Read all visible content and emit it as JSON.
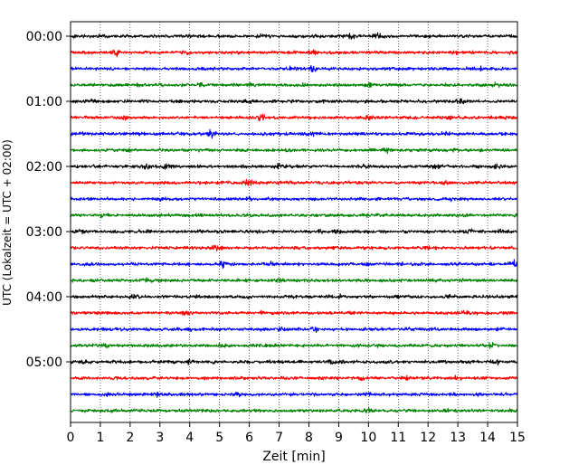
{
  "chart_data": {
    "type": "line",
    "title": "",
    "xlabel": "Zeit  [min]",
    "ylabel": "UTC (Lokalzeit = UTC + 02:00)",
    "xlim": [
      0,
      15
    ],
    "xticks": [
      "0",
      "1",
      "2",
      "3",
      "4",
      "5",
      "6",
      "7",
      "8",
      "9",
      "10",
      "11",
      "12",
      "13",
      "14",
      "15"
    ],
    "yticks": [
      {
        "label": "00:00",
        "row": 0
      },
      {
        "label": "01:00",
        "row": 4
      },
      {
        "label": "02:00",
        "row": 8
      },
      {
        "label": "03:00",
        "row": 12
      },
      {
        "label": "04:00",
        "row": 16
      },
      {
        "label": "05:00",
        "row": 20
      }
    ],
    "grid": "vertical dotted",
    "trace_minutes": 15,
    "trace_colors": [
      "#000000",
      "#ff0000",
      "#0000ff",
      "#008000"
    ],
    "traces": [
      {
        "start": "00:00",
        "color_index": 0,
        "events": [
          [
            9.4,
            2.2
          ],
          [
            10.3,
            3.4
          ],
          [
            0.1,
            1.5
          ],
          [
            8.3,
            1.6
          ],
          [
            6.4,
            1.4
          ]
        ]
      },
      {
        "start": "00:15",
        "color_index": 1,
        "events": [
          [
            1.5,
            2.0
          ],
          [
            3.9,
            2.0
          ],
          [
            8.2,
            3.2
          ],
          [
            1.6,
            1.6
          ],
          [
            12.9,
            1.6
          ],
          [
            14.8,
            1.5
          ]
        ]
      },
      {
        "start": "00:30",
        "color_index": 2,
        "events": [
          [
            7.3,
            1.8
          ],
          [
            8.1,
            2.8
          ],
          [
            4.4,
            1.5
          ],
          [
            10.8,
            1.5
          ],
          [
            13.8,
            1.6
          ]
        ]
      },
      {
        "start": "00:45",
        "color_index": 3,
        "events": [
          [
            4.4,
            2.0
          ],
          [
            10.0,
            2.0
          ],
          [
            14.3,
            1.8
          ],
          [
            2.3,
            1.5
          ],
          [
            7.8,
            1.5
          ],
          [
            6.0,
            1.6
          ]
        ]
      },
      {
        "start": "01:00",
        "color_index": 0,
        "events": [
          [
            0.7,
            1.6
          ],
          [
            6.0,
            1.5
          ],
          [
            13.1,
            1.8
          ]
        ]
      },
      {
        "start": "01:15",
        "color_index": 1,
        "events": [
          [
            1.7,
            2.0
          ],
          [
            6.4,
            2.6
          ],
          [
            10.0,
            2.0
          ],
          [
            12.7,
            2.0
          ],
          [
            14.5,
            1.5
          ]
        ]
      },
      {
        "start": "01:30",
        "color_index": 2,
        "events": [
          [
            4.7,
            4.0
          ],
          [
            8.1,
            2.0
          ],
          [
            12.6,
            1.8
          ],
          [
            0.4,
            1.4
          ],
          [
            3.5,
            1.4
          ]
        ]
      },
      {
        "start": "01:45",
        "color_index": 3,
        "events": [
          [
            10.6,
            2.2
          ],
          [
            2.0,
            1.6
          ],
          [
            7.2,
            1.5
          ],
          [
            12.9,
            1.5
          ]
        ]
      },
      {
        "start": "02:00",
        "color_index": 0,
        "events": [
          [
            2.5,
            3.0
          ],
          [
            3.2,
            2.4
          ],
          [
            7.0,
            1.8
          ],
          [
            12.3,
            2.0
          ],
          [
            14.3,
            2.4
          ],
          [
            9.9,
            1.6
          ]
        ]
      },
      {
        "start": "02:15",
        "color_index": 1,
        "events": [
          [
            6.0,
            2.4
          ],
          [
            11.7,
            1.5
          ],
          [
            12.6,
            1.8
          ],
          [
            3.2,
            1.4
          ],
          [
            14.9,
            1.5
          ]
        ]
      },
      {
        "start": "02:30",
        "color_index": 2,
        "events": [
          [
            6.0,
            1.8
          ],
          [
            9.8,
            1.6
          ],
          [
            12.8,
            1.6
          ],
          [
            3.0,
            1.4
          ]
        ]
      },
      {
        "start": "02:45",
        "color_index": 3,
        "events": [
          [
            10.0,
            2.0
          ],
          [
            6.0,
            1.8
          ],
          [
            1.1,
            1.4
          ],
          [
            13.1,
            1.5
          ]
        ]
      },
      {
        "start": "03:00",
        "color_index": 0,
        "events": [
          [
            0.3,
            1.8
          ],
          [
            2.6,
            1.8
          ],
          [
            9.0,
            1.8
          ],
          [
            13.4,
            1.8
          ],
          [
            14.4,
            2.2
          ],
          [
            8.4,
            1.5
          ]
        ]
      },
      {
        "start": "03:15",
        "color_index": 1,
        "events": [
          [
            4.9,
            2.2
          ],
          [
            7.7,
            1.6
          ],
          [
            11.9,
            1.5
          ],
          [
            14.9,
            1.5
          ]
        ]
      },
      {
        "start": "03:30",
        "color_index": 2,
        "events": [
          [
            5.1,
            2.4
          ],
          [
            6.7,
            2.0
          ],
          [
            10.0,
            1.6
          ],
          [
            11.1,
            1.6
          ],
          [
            14.9,
            3.0
          ]
        ]
      },
      {
        "start": "03:45",
        "color_index": 3,
        "events": [
          [
            2.5,
            1.6
          ],
          [
            3.0,
            1.6
          ],
          [
            7.0,
            1.5
          ],
          [
            13.0,
            1.5
          ]
        ]
      },
      {
        "start": "04:00",
        "color_index": 0,
        "events": [
          [
            2.1,
            1.8
          ],
          [
            9.0,
            1.6
          ],
          [
            12.7,
            1.8
          ],
          [
            5.9,
            1.4
          ]
        ]
      },
      {
        "start": "04:15",
        "color_index": 1,
        "events": [
          [
            3.9,
            2.8
          ],
          [
            6.4,
            1.8
          ],
          [
            10.6,
            1.6
          ],
          [
            13.2,
            1.6
          ]
        ]
      },
      {
        "start": "04:30",
        "color_index": 2,
        "events": [
          [
            4.0,
            1.8
          ],
          [
            8.2,
            2.2
          ],
          [
            12.0,
            1.6
          ],
          [
            7.0,
            1.5
          ]
        ]
      },
      {
        "start": "04:45",
        "color_index": 3,
        "events": [
          [
            1.2,
            2.0
          ],
          [
            5.1,
            1.6
          ],
          [
            10.3,
            1.6
          ],
          [
            14.2,
            2.6
          ],
          [
            6.9,
            1.4
          ]
        ]
      },
      {
        "start": "05:00",
        "color_index": 0,
        "events": [
          [
            0.5,
            2.4
          ],
          [
            4.0,
            2.6
          ],
          [
            8.8,
            2.4
          ],
          [
            13.2,
            1.8
          ],
          [
            14.3,
            2.4
          ],
          [
            10.8,
            1.6
          ]
        ]
      },
      {
        "start": "05:15",
        "color_index": 1,
        "events": [
          [
            1.6,
            1.6
          ],
          [
            5.9,
            1.8
          ],
          [
            9.7,
            1.8
          ],
          [
            13.0,
            2.0
          ],
          [
            11.3,
            1.5
          ]
        ]
      },
      {
        "start": "05:30",
        "color_index": 2,
        "events": [
          [
            1.2,
            1.6
          ],
          [
            2.9,
            1.8
          ],
          [
            5.6,
            2.0
          ],
          [
            10.0,
            1.6
          ],
          [
            13.8,
            1.8
          ]
        ]
      },
      {
        "start": "05:45",
        "color_index": 3,
        "events": [
          [
            10.0,
            2.2
          ],
          [
            1.0,
            1.6
          ],
          [
            4.1,
            1.5
          ],
          [
            12.7,
            1.6
          ],
          [
            14.8,
            1.6
          ]
        ]
      }
    ]
  }
}
